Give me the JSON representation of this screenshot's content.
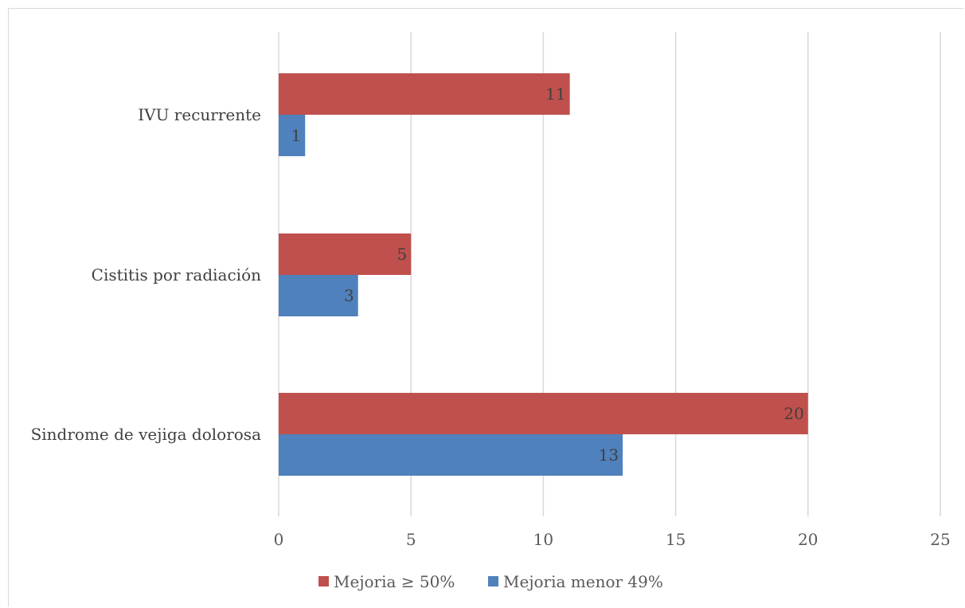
{
  "chart_data": {
    "type": "bar",
    "orientation": "horizontal",
    "categories": [
      "IVU recurrente",
      "Cistitis por radiación",
      "Sindrome de vejiga dolorosa"
    ],
    "series": [
      {
        "name": "Mejoria ≥  50%",
        "values": [
          11,
          5,
          20
        ],
        "color": "#c0504d"
      },
      {
        "name": "Mejoria menor 49%",
        "values": [
          1,
          3,
          13
        ],
        "color": "#4f81bd"
      }
    ],
    "xlim": [
      0,
      25
    ],
    "xticks": [
      0,
      5,
      10,
      15,
      20,
      25
    ],
    "grid": true,
    "legend_position": "bottom",
    "data_labels": true
  }
}
